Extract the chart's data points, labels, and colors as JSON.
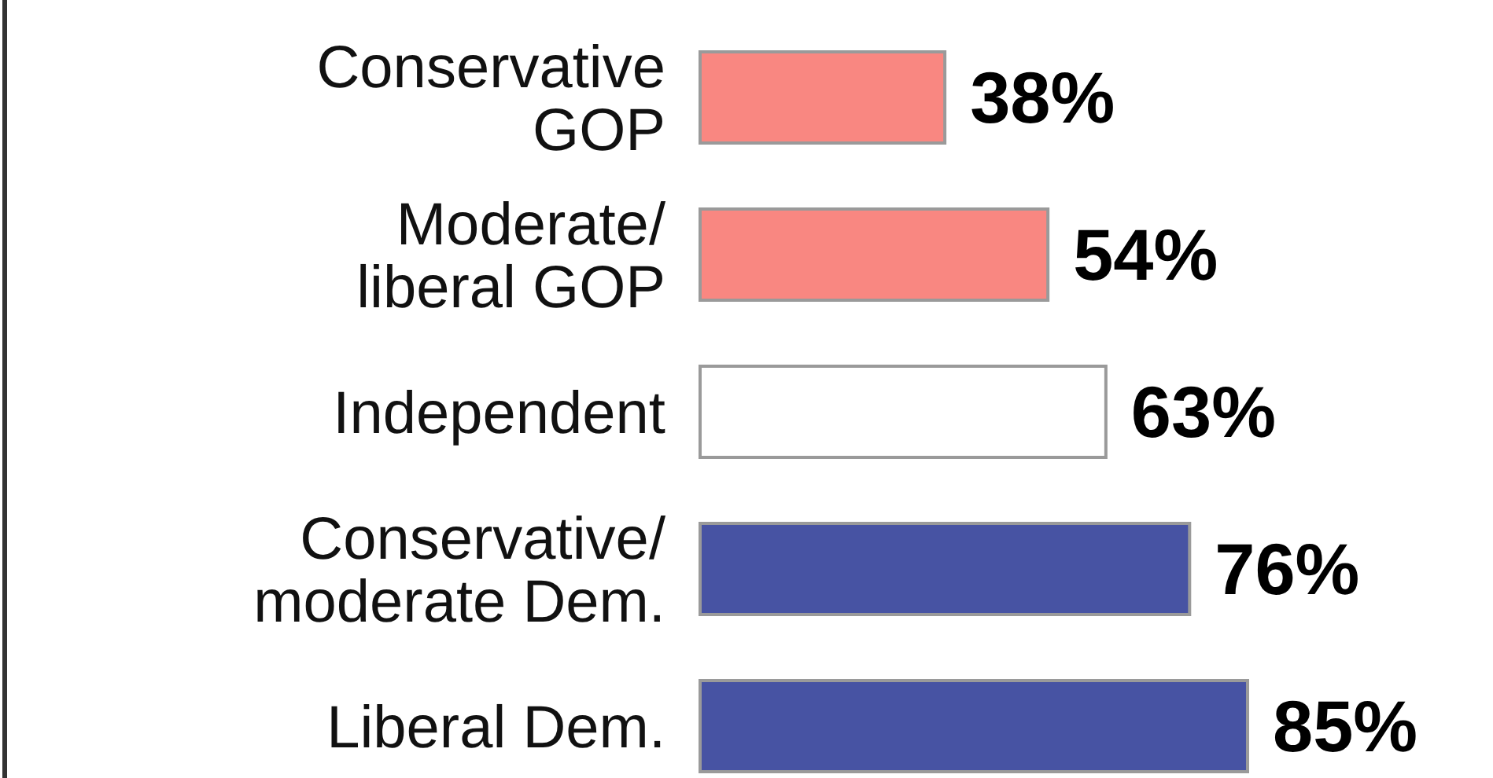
{
  "chart_data": {
    "type": "bar",
    "orientation": "horizontal",
    "categories": [
      "Conservative GOP",
      "Moderate/ liberal GOP",
      "Independent",
      "Conservative/ moderate Dem.",
      "Liberal Dem."
    ],
    "values": [
      38,
      54,
      63,
      76,
      85
    ],
    "colors": [
      "#f98781",
      "#f98781",
      "#ffffff",
      "#4753a3",
      "#4753a3"
    ],
    "value_labels": [
      "38%",
      "54%",
      "63%",
      "76%",
      "85%"
    ]
  }
}
